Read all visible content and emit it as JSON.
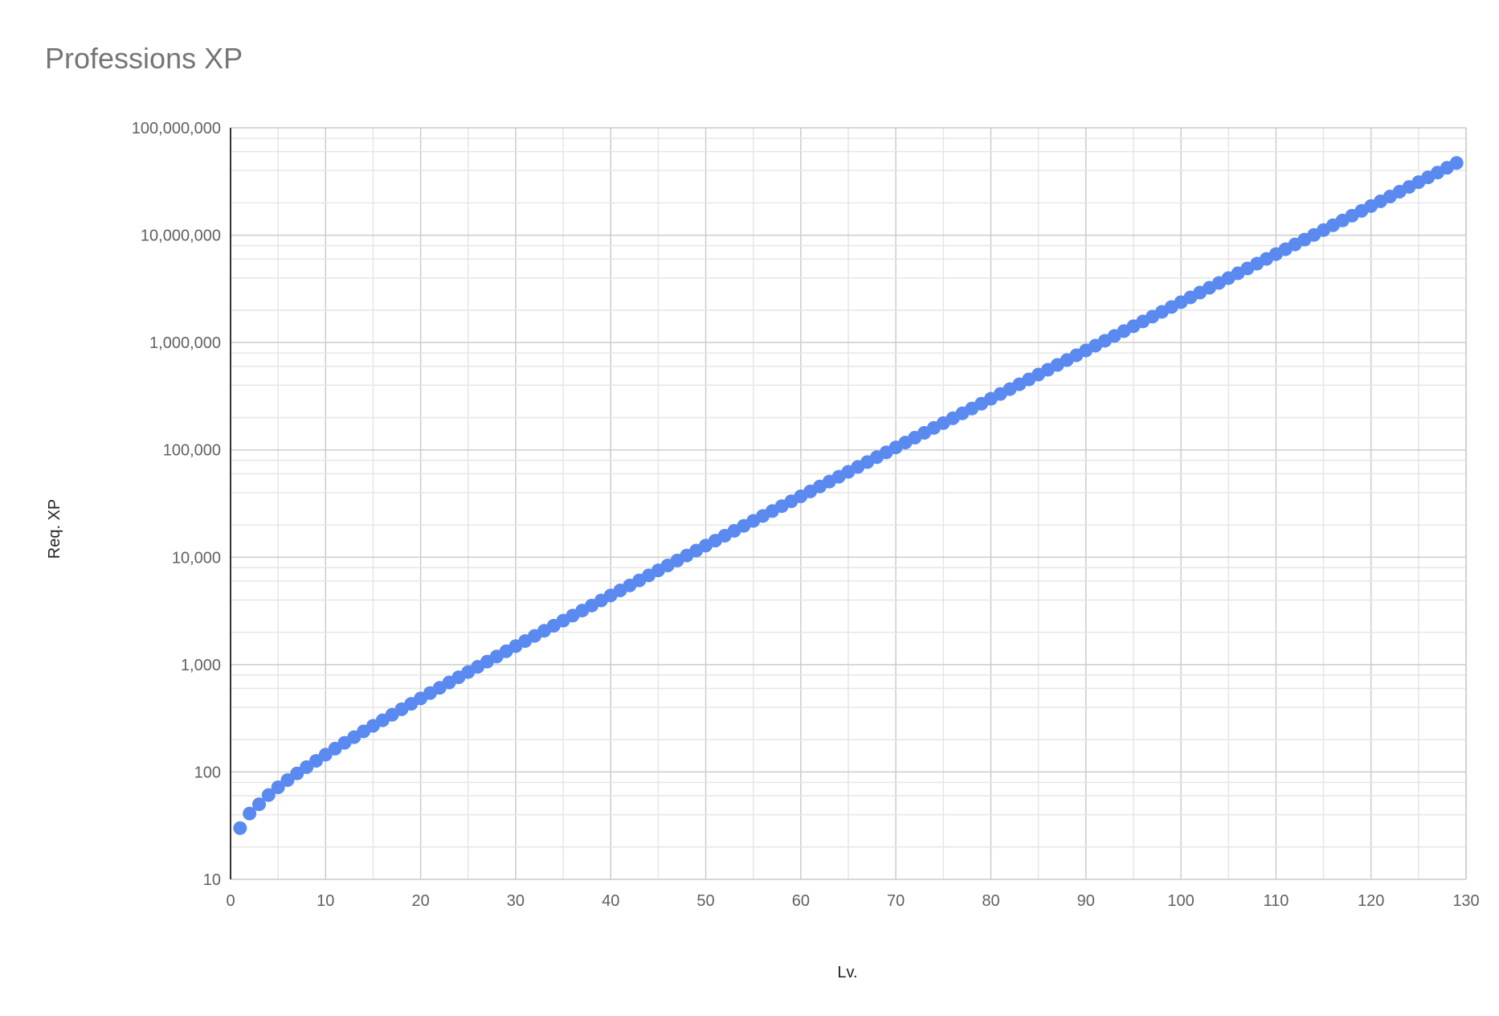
{
  "chart_data": {
    "type": "scatter",
    "title": "Professions XP",
    "xlabel": "Lv.",
    "ylabel": "Req. XP",
    "xlim": [
      0,
      130
    ],
    "ylim": [
      10,
      100000000
    ],
    "y_scale": "log",
    "grid": true,
    "legend": "none",
    "point_color": "#5a8af0",
    "x_ticks": [
      0,
      10,
      20,
      30,
      40,
      50,
      60,
      70,
      80,
      90,
      100,
      110,
      120,
      130
    ],
    "x_tick_labels": [
      "0",
      "10",
      "20",
      "30",
      "40",
      "50",
      "60",
      "70",
      "80",
      "90",
      "100",
      "110",
      "120",
      "130"
    ],
    "y_ticks": [
      10,
      100,
      1000,
      10000,
      100000,
      1000000,
      10000000,
      100000000
    ],
    "y_tick_labels": [
      "10",
      "100",
      "1,000",
      "10,000",
      "100,000",
      "1,000,000",
      "10,000,000",
      "100,000,000"
    ],
    "x": [
      1,
      2,
      3,
      4,
      5,
      6,
      7,
      8,
      9,
      10,
      11,
      12,
      13,
      14,
      15,
      16,
      17,
      18,
      19,
      20,
      21,
      22,
      23,
      24,
      25,
      26,
      27,
      28,
      29,
      30,
      31,
      32,
      33,
      34,
      35,
      36,
      37,
      38,
      39,
      40,
      41,
      42,
      43,
      44,
      45,
      46,
      47,
      48,
      49,
      50,
      51,
      52,
      53,
      54,
      55,
      56,
      57,
      58,
      59,
      60,
      61,
      62,
      63,
      64,
      65,
      66,
      67,
      68,
      69,
      70,
      71,
      72,
      73,
      74,
      75,
      76,
      77,
      78,
      79,
      80,
      81,
      82,
      83,
      84,
      85,
      86,
      87,
      88,
      89,
      90,
      91,
      92,
      93,
      94,
      95,
      96,
      97,
      98,
      99,
      100,
      101,
      102,
      103,
      104,
      105,
      106,
      107,
      108,
      109,
      110,
      111,
      112,
      113,
      114,
      115,
      116,
      117,
      118,
      119,
      120,
      121,
      122,
      123,
      124,
      125,
      126,
      127,
      128,
      129
    ],
    "y": [
      30,
      41,
      50,
      61,
      72,
      84,
      97,
      111,
      127,
      145,
      165,
      187,
      211,
      239,
      269,
      303,
      341,
      384,
      431,
      484,
      543,
      608,
      681,
      762,
      853,
      954,
      1066,
      1191,
      1331,
      1486,
      1659,
      1851,
      2065,
      2302,
      2567,
      2861,
      3189,
      3553,
      3958,
      4409,
      4910,
      5466,
      6085,
      6773,
      7539,
      8386,
      9328,
      10378,
      11544,
      12841,
      14275,
      15874,
      17647,
      19616,
      21807,
      24235,
      26934,
      29923,
      33250,
      36940,
      41040,
      45600,
      50650,
      56250,
      62470,
      69370,
      77040,
      85510,
      94960,
      105410,
      117050,
      129930,
      144210,
      160130,
      177750,
      197150,
      218870,
      242830,
      269420,
      298990,
      331740,
      368190,
      408570,
      453320,
      502930,
      557730,
      618730,
      686330,
      761240,
      844230,
      936440,
      1038740,
      1152220,
      1278040,
      1417450,
      1571500,
      1742600,
      1932000,
      2142000,
      2376000,
      2634000,
      2921000,
      3238000,
      3592000,
      3981000,
      4413000,
      4893000,
      5424000,
      6013000,
      6665000,
      7388000,
      8191000,
      9078000,
      10060000,
      11150000,
      12360000,
      13700000,
      15190000,
      16830000,
      18660000,
      20670000,
      22910000,
      25390000,
      28130000,
      31180000,
      34550000,
      38280000,
      42420000,
      47010000
    ]
  }
}
